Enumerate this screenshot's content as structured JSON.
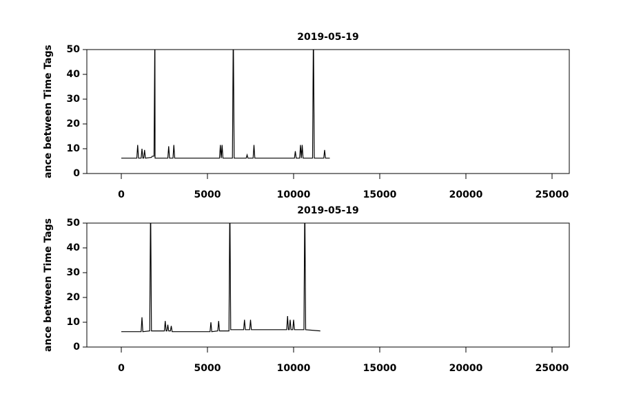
{
  "chart_data": [
    {
      "type": "line",
      "title": "2019-05-19",
      "y_label": "ance between Time Tags",
      "xlim": [
        -2000,
        26000
      ],
      "xticks": [
        0,
        5000,
        10000,
        15000,
        20000,
        25000
      ],
      "ylim": [
        0,
        50
      ],
      "yticks": [
        0,
        10,
        20,
        30,
        40,
        50
      ],
      "grid": false,
      "series": [
        {
          "color": "#000000",
          "x": [
            0,
            900,
            950,
            1000,
            1150,
            1200,
            1250,
            1300,
            1350,
            1400,
            1750,
            1800,
            1900,
            1950,
            1960,
            2000,
            2700,
            2750,
            2800,
            3000,
            3050,
            3100,
            5700,
            5750,
            5800,
            5850,
            5900,
            6450,
            6500,
            6550,
            7250,
            7300,
            7350,
            7650,
            7700,
            7750,
            10050,
            10100,
            10150,
            10350,
            10400,
            10450,
            10500,
            10550,
            11100,
            11150,
            11200,
            11750,
            11800,
            11850,
            12100
          ],
          "values": [
            6.2,
            6.2,
            11.5,
            6.2,
            6.2,
            10,
            6.2,
            6.2,
            9.5,
            6.2,
            6.5,
            7,
            7,
            60,
            6.2,
            6.2,
            6.2,
            11,
            6.2,
            6.2,
            11.5,
            6.2,
            6.2,
            11.5,
            6.2,
            11.5,
            6.2,
            6.2,
            60,
            6.2,
            6.2,
            7.5,
            6.2,
            6.2,
            11.5,
            6.2,
            6.2,
            9,
            6.2,
            6.2,
            11.5,
            6.2,
            11.5,
            6.2,
            6.2,
            60,
            6.2,
            6.2,
            9.5,
            6.2,
            6.2
          ]
        }
      ]
    },
    {
      "type": "line",
      "title": "2019-05-19",
      "y_label": "ance between Time Tags",
      "xlim": [
        -2000,
        26000
      ],
      "xticks": [
        0,
        5000,
        10000,
        15000,
        20000,
        25000
      ],
      "ylim": [
        0,
        50
      ],
      "yticks": [
        0,
        10,
        20,
        30,
        40,
        50
      ],
      "grid": false,
      "series": [
        {
          "color": "#000000",
          "x": [
            0,
            1150,
            1200,
            1250,
            1650,
            1700,
            1750,
            2500,
            2550,
            2600,
            2650,
            2700,
            2750,
            2850,
            2900,
            2950,
            5150,
            5200,
            5250,
            5600,
            5650,
            5700,
            6250,
            6300,
            6350,
            7100,
            7150,
            7200,
            7450,
            7500,
            7550,
            9600,
            9650,
            9700,
            9750,
            9800,
            9850,
            9950,
            10000,
            10050,
            10600,
            10650,
            10700,
            11550
          ],
          "values": [
            6.2,
            6.2,
            12,
            6.2,
            6.5,
            60,
            6.5,
            6.5,
            10.5,
            6.5,
            6.5,
            9,
            6.5,
            6.5,
            8.5,
            6.2,
            6.2,
            10,
            6.2,
            6.5,
            10.5,
            6.5,
            6.5,
            60,
            7,
            7,
            11,
            7,
            7,
            11,
            7,
            7,
            12.5,
            7,
            7,
            11,
            7,
            7,
            11,
            7,
            7,
            60,
            7,
            6.5
          ]
        }
      ]
    }
  ]
}
